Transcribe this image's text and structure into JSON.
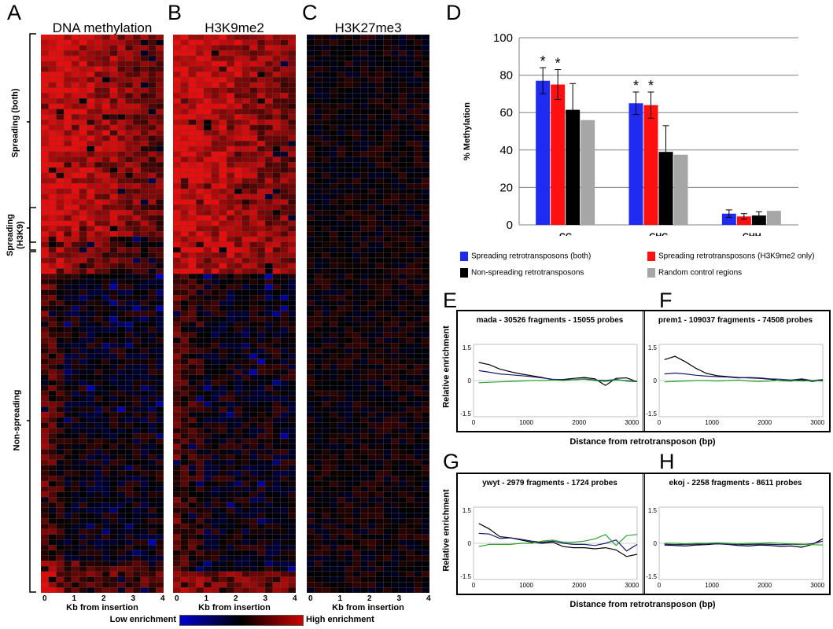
{
  "panels": {
    "A": "A",
    "B": "B",
    "C": "C",
    "D": "D",
    "E": "E",
    "F": "F",
    "G": "G",
    "H": "H"
  },
  "heatmaps": {
    "titles": [
      "DNA methylation",
      "H3K9me2",
      "H3K27me3"
    ],
    "xticks": [
      "0",
      "1",
      "2",
      "3",
      "4"
    ],
    "xlabel": "Kb from insertion",
    "group_labels": [
      "Spreading (both)",
      "Spreading (H3K9)",
      "Non-spreading"
    ],
    "colorbar": {
      "low": "Low enrichment",
      "high": "High enrichment",
      "colors": [
        "#0000cc",
        "#000000",
        "#cc0000"
      ]
    }
  },
  "chart_data": [
    {
      "panel": "D",
      "type": "bar",
      "ylabel": "% Methylation",
      "ylim": [
        0,
        100
      ],
      "yticks": [
        "0",
        "20",
        "40",
        "60",
        "80",
        "100"
      ],
      "categories": [
        "CG",
        "CHG",
        "CHH"
      ],
      "series": [
        {
          "name": "Spreading retrotransposons (both)",
          "color": "#1f2bf0",
          "values": [
            77,
            65,
            6
          ],
          "errors": [
            7,
            6,
            2
          ],
          "significant": [
            true,
            true,
            false
          ]
        },
        {
          "name": "Spreading retrotransposons (H3K9me2 only)",
          "color": "#ff1010",
          "values": [
            75,
            64,
            4.5
          ],
          "errors": [
            8,
            7,
            1.5
          ],
          "significant": [
            true,
            true,
            false
          ]
        },
        {
          "name": "Non-spreading retrotransposons",
          "color": "#000000",
          "values": [
            61.5,
            39,
            5
          ],
          "errors": [
            14,
            14,
            2
          ],
          "significant": [
            false,
            false,
            false
          ]
        },
        {
          "name": "Random control regions",
          "color": "#a6a6a6",
          "values": [
            56,
            37.5,
            7.5
          ],
          "errors": [
            0,
            0,
            0
          ],
          "significant": [
            false,
            false,
            false
          ]
        }
      ],
      "significance_mark": "*",
      "grid": true,
      "legend_position": "bottom"
    },
    {
      "panel": "E",
      "type": "line",
      "title": "mada - 30526 fragments - 15055 probes",
      "xticks": [
        "0",
        "1000",
        "2000",
        "3000"
      ],
      "yticks": [
        "1.5",
        "0",
        "-1.5"
      ],
      "xlim": [
        0,
        3100
      ],
      "ylim": [
        -1.5,
        1.5
      ],
      "x": [
        100,
        300,
        500,
        700,
        900,
        1100,
        1300,
        1500,
        1700,
        1900,
        2100,
        2300,
        2500,
        2700,
        2900,
        3100
      ],
      "series": [
        {
          "color": "#000000",
          "values": [
            0.82,
            0.72,
            0.52,
            0.4,
            0.3,
            0.22,
            0.14,
            0.04,
            0.05,
            0.1,
            0.14,
            0.08,
            -0.22,
            0.1,
            0.12,
            -0.05
          ]
        },
        {
          "color": "#1a1a6e",
          "values": [
            0.45,
            0.38,
            0.3,
            0.26,
            0.22,
            0.18,
            0.12,
            0.06,
            0.04,
            0.04,
            0.08,
            0.02,
            0.0,
            0.05,
            -0.02,
            -0.05
          ]
        },
        {
          "color": "#2ca02c",
          "values": [
            -0.1,
            -0.08,
            -0.06,
            -0.04,
            -0.02,
            0.0,
            0.0,
            0.02,
            0.0,
            0.04,
            0.06,
            0.0,
            -0.04,
            0.02,
            0.0,
            -0.02
          ]
        }
      ]
    },
    {
      "panel": "F",
      "type": "line",
      "title": "prem1 - 109037 fragments - 74508 probes",
      "xticks": [
        "0",
        "1000",
        "2000",
        "3000"
      ],
      "yticks": [
        "1.5",
        "0",
        "-1.5"
      ],
      "xlim": [
        0,
        3100
      ],
      "ylim": [
        -1.5,
        1.5
      ],
      "x": [
        100,
        300,
        500,
        700,
        900,
        1100,
        1300,
        1500,
        1700,
        1900,
        2100,
        2300,
        2500,
        2700,
        2900,
        3100
      ],
      "series": [
        {
          "color": "#000000",
          "values": [
            0.95,
            1.1,
            0.85,
            0.55,
            0.32,
            0.22,
            0.18,
            0.14,
            0.12,
            0.1,
            0.06,
            0.0,
            -0.02,
            0.04,
            -0.04,
            0.02
          ]
        },
        {
          "color": "#1a1a6e",
          "values": [
            0.3,
            0.34,
            0.3,
            0.24,
            0.2,
            0.18,
            0.16,
            0.12,
            0.14,
            0.12,
            0.08,
            0.06,
            0.02,
            0.08,
            0.0,
            0.04
          ]
        },
        {
          "color": "#2ca02c",
          "values": [
            -0.06,
            -0.04,
            -0.02,
            0.0,
            0.0,
            -0.02,
            0.0,
            0.02,
            -0.02,
            -0.04,
            -0.02,
            0.02,
            0.0,
            -0.02,
            0.0,
            -0.02
          ]
        }
      ]
    },
    {
      "panel": "G",
      "type": "line",
      "title": "ywyt - 2979 fragments - 1724 probes",
      "xticks": [
        "0",
        "1000",
        "2000",
        "3000"
      ],
      "yticks": [
        "1.5",
        "0",
        "-1.5"
      ],
      "xlim": [
        0,
        3100
      ],
      "ylim": [
        -1.5,
        1.5
      ],
      "x": [
        100,
        300,
        500,
        700,
        900,
        1100,
        1300,
        1500,
        1700,
        1900,
        2100,
        2300,
        2500,
        2700,
        2900,
        3100
      ],
      "series": [
        {
          "color": "#000000",
          "values": [
            0.9,
            0.65,
            0.3,
            0.25,
            0.15,
            0.05,
            0.0,
            0.05,
            -0.15,
            -0.2,
            -0.2,
            -0.25,
            -0.2,
            -0.3,
            -0.6,
            -0.5
          ]
        },
        {
          "color": "#1a1a6e",
          "values": [
            0.45,
            0.42,
            0.22,
            0.25,
            0.18,
            0.1,
            0.05,
            0.1,
            0.0,
            -0.05,
            -0.05,
            -0.1,
            0.0,
            0.15,
            -0.35,
            -0.05
          ]
        },
        {
          "color": "#2ca02c",
          "values": [
            -0.15,
            -0.05,
            -0.05,
            -0.05,
            0.0,
            0.0,
            0.1,
            0.15,
            0.05,
            0.05,
            0.1,
            0.2,
            0.4,
            -0.1,
            0.35,
            0.4
          ]
        }
      ]
    },
    {
      "panel": "H",
      "type": "line",
      "title": "ekoj - 2258 fragments - 8611 probes",
      "xticks": [
        "0",
        "1000",
        "2000",
        "3000"
      ],
      "yticks": [
        "1.5",
        "0",
        "-1.5"
      ],
      "xlim": [
        0,
        3100
      ],
      "ylim": [
        -1.5,
        1.5
      ],
      "x": [
        100,
        300,
        500,
        700,
        900,
        1100,
        1300,
        1500,
        1700,
        1900,
        2100,
        2300,
        2500,
        2700,
        2900,
        3100
      ],
      "series": [
        {
          "color": "#000000",
          "values": [
            -0.08,
            -0.1,
            -0.12,
            -0.08,
            -0.06,
            -0.02,
            -0.05,
            -0.1,
            -0.12,
            -0.08,
            -0.1,
            -0.14,
            -0.12,
            -0.18,
            -0.05,
            0.2
          ]
        },
        {
          "color": "#1a1a6e",
          "values": [
            -0.04,
            -0.06,
            -0.05,
            -0.04,
            -0.02,
            -0.02,
            -0.04,
            -0.06,
            -0.05,
            -0.04,
            -0.05,
            -0.06,
            -0.04,
            -0.06,
            -0.02,
            0.1
          ]
        },
        {
          "color": "#2ca02c",
          "values": [
            0.0,
            0.0,
            -0.02,
            0.0,
            0.0,
            0.02,
            0.0,
            -0.02,
            0.0,
            0.0,
            0.02,
            0.0,
            -0.02,
            -0.04,
            -0.06,
            -0.08
          ]
        }
      ]
    }
  ],
  "line_panels_shared": {
    "ylabel": "Relative enrichment",
    "xlabel": "Distance from retrotransposon (bp)"
  }
}
